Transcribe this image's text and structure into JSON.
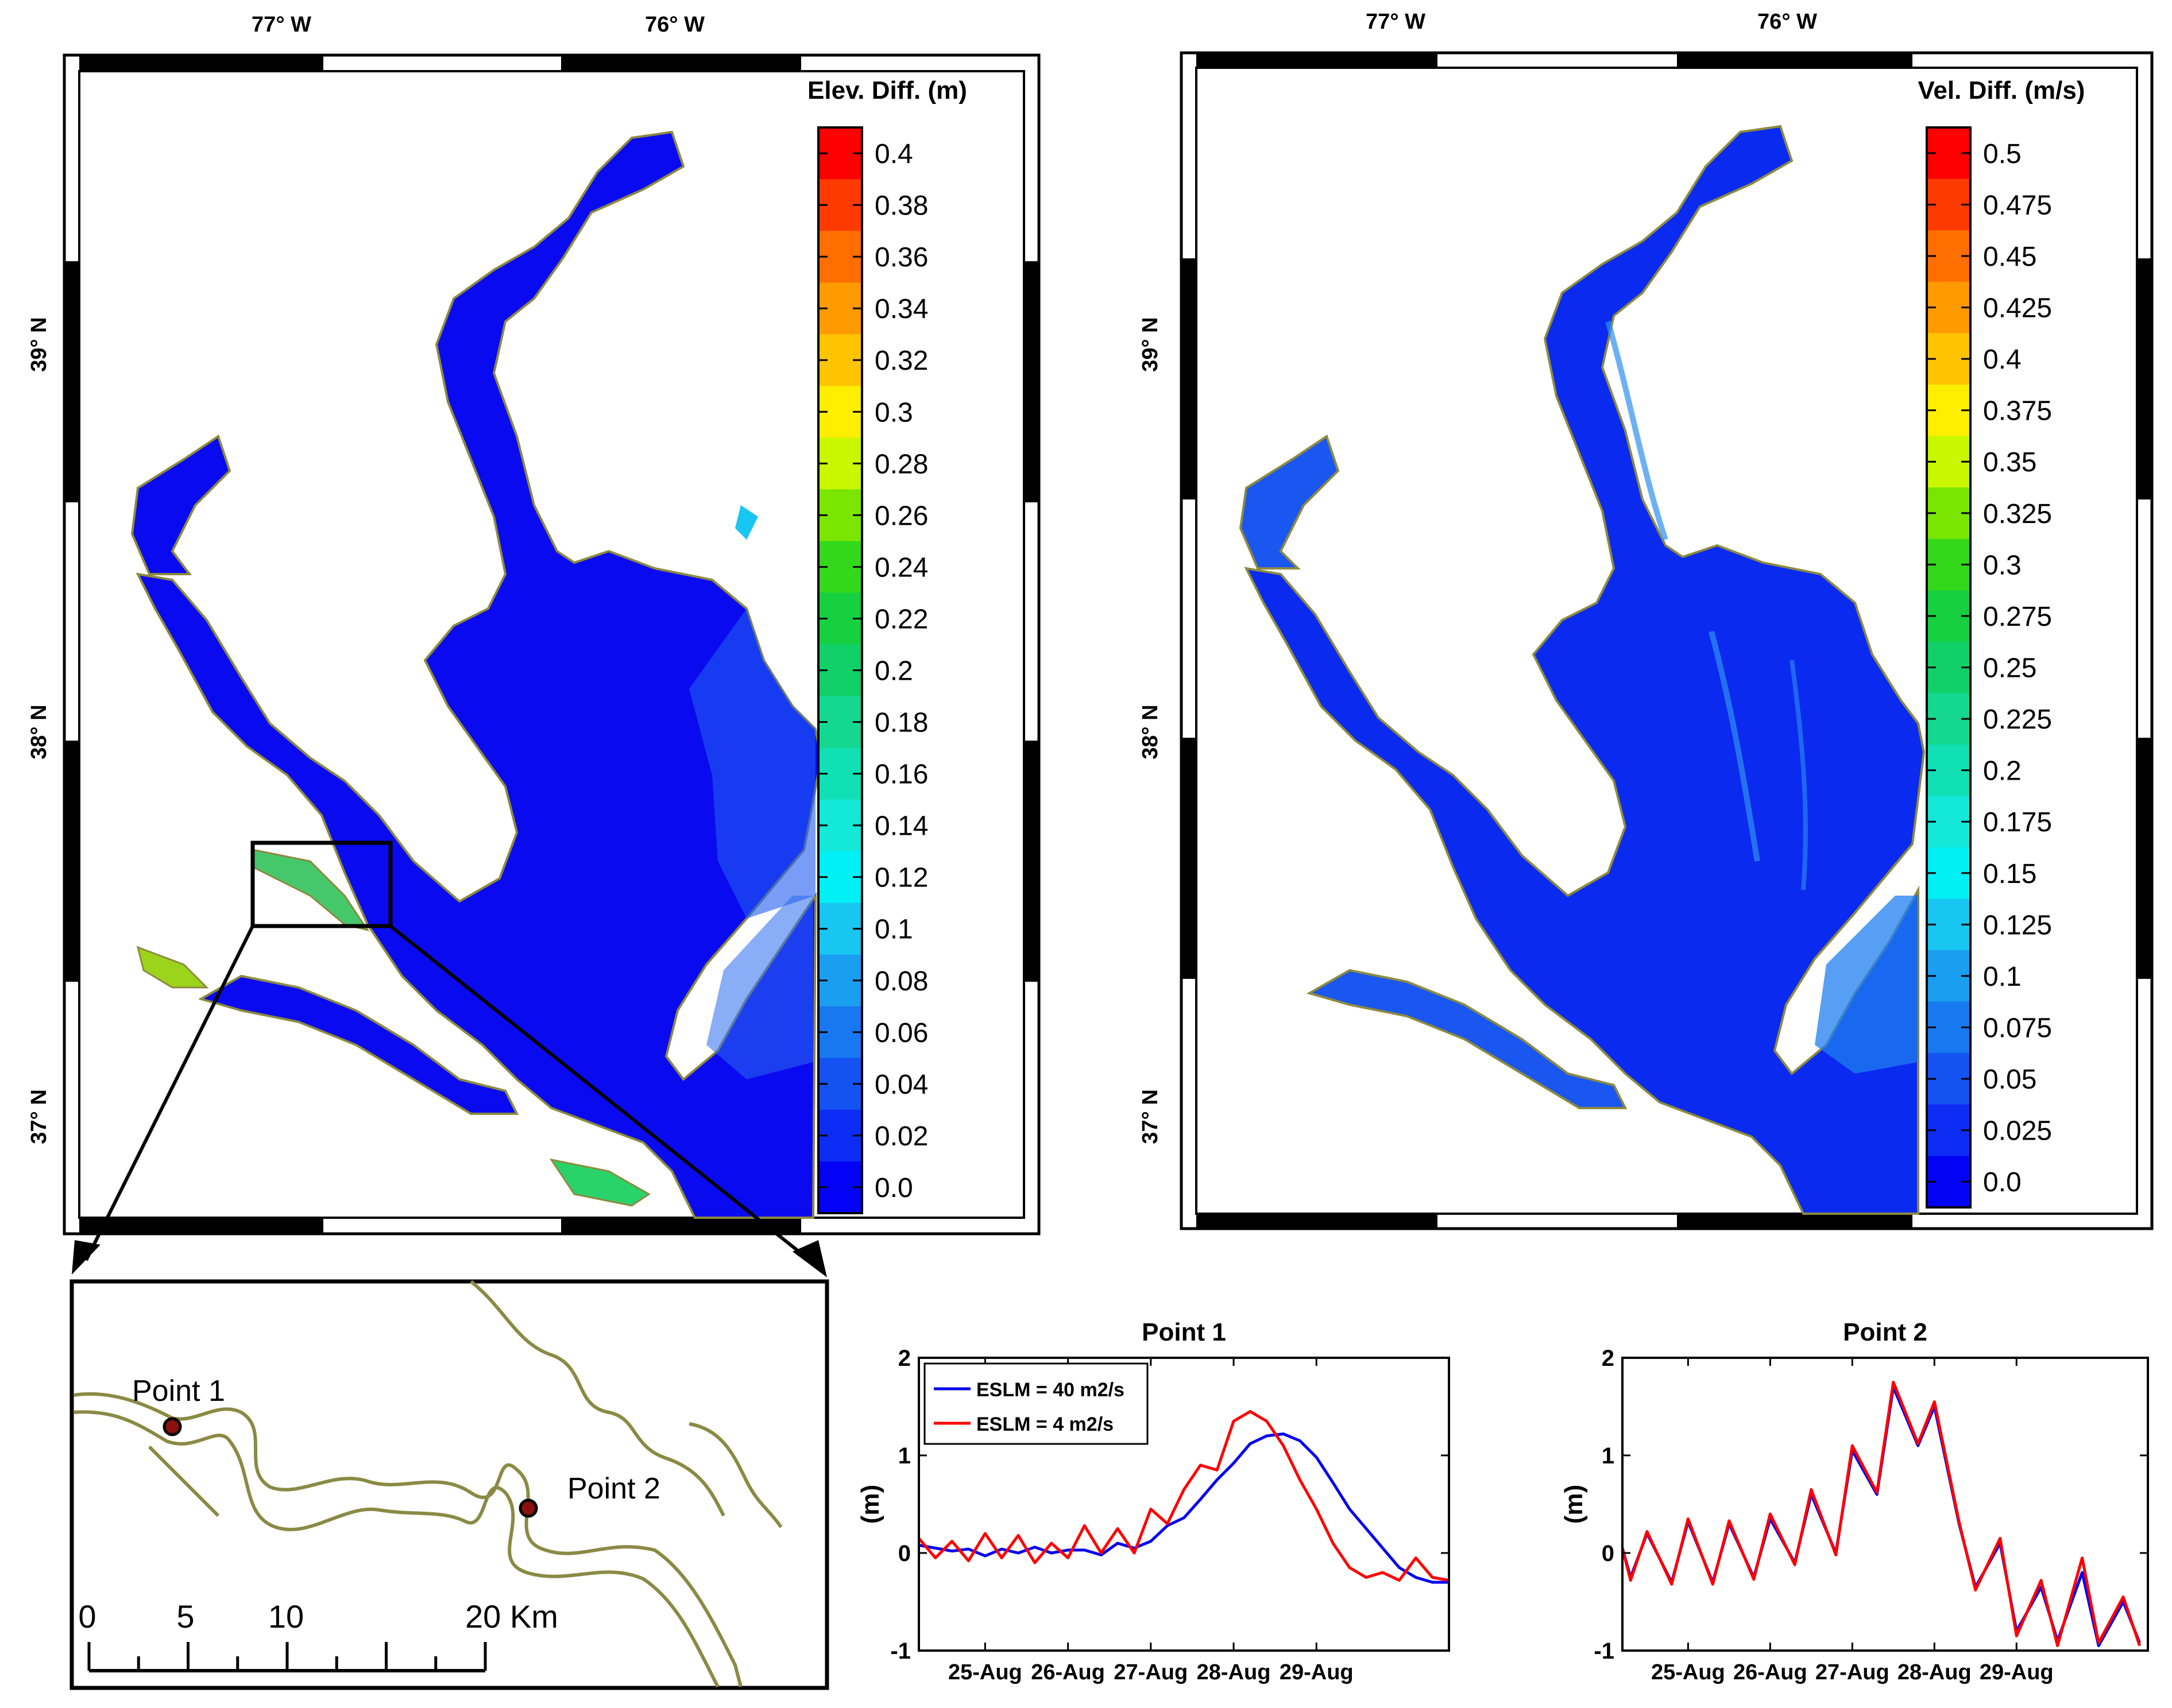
{
  "colors": {
    "water_deep": "#0a0af0",
    "water_mid": "#1f5cf2",
    "shoreline": "#8d8a40",
    "inset_line": "#8a8a45",
    "series_blue": "#0000ee",
    "series_red": "#ff0000",
    "frame": "#000000"
  },
  "map_left": {
    "lon_labels": [
      "77° W",
      "76° W"
    ],
    "lat_labels": [
      "39° N",
      "38° N",
      "37° N"
    ],
    "colorbar": {
      "title": "Elev. Diff. (m)",
      "ticks": [
        "0.4",
        "0.38",
        "0.36",
        "0.34",
        "0.32",
        "0.3",
        "0.28",
        "0.26",
        "0.24",
        "0.22",
        "0.2",
        "0.18",
        "0.16",
        "0.14",
        "0.12",
        "0.1",
        "0.08",
        "0.06",
        "0.04",
        "0.02",
        "0.0"
      ],
      "colors": [
        "#fe0000",
        "#ff3a00",
        "#ff6e00",
        "#ff9a00",
        "#ffc400",
        "#ffee00",
        "#c8f700",
        "#7ae600",
        "#33d81a",
        "#16d040",
        "#12d068",
        "#14d890",
        "#10e0b4",
        "#14e8d8",
        "#00f0f5",
        "#18c6f2",
        "#1a9ef0",
        "#1778f0",
        "#1452f2",
        "#0c2cf4",
        "#0202f5"
      ]
    }
  },
  "map_right": {
    "lon_labels": [
      "77° W",
      "76° W"
    ],
    "lat_labels": [
      "39° N",
      "38° N",
      "37° N"
    ],
    "colorbar": {
      "title": "Vel. Diff. (m/s)",
      "ticks": [
        "0.5",
        "0.475",
        "0.45",
        "0.425",
        "0.4",
        "0.375",
        "0.35",
        "0.325",
        "0.3",
        "0.275",
        "0.25",
        "0.225",
        "0.2",
        "0.175",
        "0.15",
        "0.125",
        "0.1",
        "0.075",
        "0.05",
        "0.025",
        "0.0"
      ],
      "colors": [
        "#fe0000",
        "#ff3a00",
        "#ff6e00",
        "#ff9a00",
        "#ffc400",
        "#ffee00",
        "#c8f700",
        "#7ae600",
        "#33d81a",
        "#16d040",
        "#12d068",
        "#14d890",
        "#10e0b4",
        "#14e8d8",
        "#00f0f5",
        "#18c6f2",
        "#1a9ef0",
        "#1778f0",
        "#1452f2",
        "#0c2cf4",
        "#0202f5"
      ]
    }
  },
  "inset": {
    "points": [
      "Point 1",
      "Point 2"
    ],
    "scale_labels": [
      "0",
      "5",
      "10",
      "20 Km"
    ]
  },
  "chart_data": [
    {
      "type": "line",
      "title": "Point 1",
      "xlabel": "",
      "ylabel": "(m)",
      "ylim": [
        -1,
        2
      ],
      "yticks": [
        "2",
        "1",
        "0",
        "-1"
      ],
      "xlim": [
        24.2,
        30.6
      ],
      "xticks": [
        25,
        26,
        27,
        28,
        29
      ],
      "xtick_labels": [
        "25-Aug",
        "26-Aug",
        "27-Aug",
        "28-Aug",
        "29-Aug"
      ],
      "legend": [
        "ESLM = 40 m2/s",
        "ESLM =  4 m2/s"
      ],
      "series": [
        {
          "name": "ESLM = 40 m2/s",
          "x": [
            24.2,
            24.4,
            24.6,
            24.8,
            25.0,
            25.2,
            25.4,
            25.6,
            25.8,
            26.0,
            26.2,
            26.4,
            26.6,
            26.8,
            27.0,
            27.2,
            27.4,
            27.6,
            27.8,
            28.0,
            28.2,
            28.4,
            28.6,
            28.8,
            29.0,
            29.2,
            29.4,
            29.6,
            29.8,
            30.0,
            30.2,
            30.4,
            30.6
          ],
          "values": [
            0.08,
            0.05,
            0.02,
            0.04,
            -0.03,
            0.04,
            0.0,
            0.06,
            0.0,
            0.03,
            0.03,
            -0.02,
            0.1,
            0.05,
            0.12,
            0.28,
            0.36,
            0.55,
            0.75,
            0.92,
            1.12,
            1.2,
            1.22,
            1.15,
            0.98,
            0.72,
            0.45,
            0.25,
            0.05,
            -0.15,
            -0.25,
            -0.3,
            -0.3
          ]
        },
        {
          "name": "ESLM =  4 m2/s",
          "x": [
            24.2,
            24.4,
            24.6,
            24.8,
            25.0,
            25.2,
            25.4,
            25.6,
            25.8,
            26.0,
            26.2,
            26.4,
            26.6,
            26.8,
            27.0,
            27.2,
            27.4,
            27.6,
            27.8,
            28.0,
            28.2,
            28.4,
            28.6,
            28.8,
            29.0,
            29.2,
            29.4,
            29.6,
            29.8,
            30.0,
            30.2,
            30.4,
            30.6
          ],
          "values": [
            0.15,
            -0.05,
            0.12,
            -0.08,
            0.2,
            -0.05,
            0.18,
            -0.1,
            0.1,
            -0.05,
            0.28,
            0.0,
            0.25,
            0.0,
            0.45,
            0.3,
            0.65,
            0.9,
            0.85,
            1.35,
            1.45,
            1.35,
            1.1,
            0.75,
            0.45,
            0.1,
            -0.15,
            -0.25,
            -0.2,
            -0.28,
            -0.05,
            -0.25,
            -0.28
          ]
        }
      ]
    },
    {
      "type": "line",
      "title": "Point 2",
      "xlabel": "",
      "ylabel": "(m)",
      "ylim": [
        -1,
        2
      ],
      "yticks": [
        "2",
        "1",
        "0",
        "-1"
      ],
      "xlim": [
        24.2,
        30.6
      ],
      "xticks": [
        25,
        26,
        27,
        28,
        29
      ],
      "xtick_labels": [
        "25-Aug",
        "26-Aug",
        "27-Aug",
        "28-Aug",
        "29-Aug"
      ],
      "series": [
        {
          "name": "ESLM = 40 m2/s",
          "x": [
            24.2,
            24.3,
            24.5,
            24.8,
            25.0,
            25.3,
            25.5,
            25.8,
            26.0,
            26.3,
            26.5,
            26.8,
            27.0,
            27.3,
            27.5,
            27.8,
            28.0,
            28.3,
            28.5,
            28.8,
            29.0,
            29.3,
            29.5,
            29.8,
            30.0,
            30.3,
            30.5
          ],
          "values": [
            0.05,
            -0.25,
            0.2,
            -0.3,
            0.32,
            -0.3,
            0.3,
            -0.25,
            0.35,
            -0.1,
            0.6,
            0.0,
            1.05,
            0.6,
            1.7,
            1.1,
            1.5,
            0.3,
            -0.35,
            0.1,
            -0.8,
            -0.35,
            -0.9,
            -0.2,
            -0.95,
            -0.5,
            -0.92
          ]
        },
        {
          "name": "ESLM =  4 m2/s",
          "x": [
            24.2,
            24.3,
            24.5,
            24.8,
            25.0,
            25.3,
            25.5,
            25.8,
            26.0,
            26.3,
            26.5,
            26.8,
            27.0,
            27.3,
            27.5,
            27.8,
            28.0,
            28.3,
            28.5,
            28.8,
            29.0,
            29.3,
            29.5,
            29.8,
            30.0,
            30.3,
            30.5
          ],
          "values": [
            0.05,
            -0.28,
            0.22,
            -0.32,
            0.35,
            -0.32,
            0.33,
            -0.27,
            0.4,
            -0.12,
            0.65,
            -0.02,
            1.1,
            0.62,
            1.75,
            1.12,
            1.55,
            0.32,
            -0.38,
            0.15,
            -0.85,
            -0.28,
            -0.95,
            -0.05,
            -0.92,
            -0.45,
            -0.95
          ]
        }
      ]
    }
  ]
}
